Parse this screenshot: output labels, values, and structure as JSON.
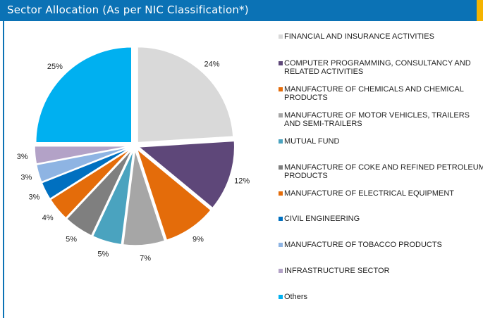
{
  "header": {
    "title": "Sector Allocation (As per NIC Classification*)",
    "bar_color": "#0b72b5",
    "accent_color": "#f5b400"
  },
  "chart_data": {
    "type": "pie",
    "title": "",
    "labels": [
      "FINANCIAL AND INSURANCE ACTIVITIES",
      "COMPUTER PROGRAMMING, CONSULTANCY AND RELATED ACTIVITIES",
      "MANUFACTURE OF CHEMICALS AND CHEMICAL PRODUCTS",
      "MANUFACTURE OF MOTOR VEHICLES, TRAILERS AND SEMI-TRAILERS",
      "MUTUAL FUND",
      "MANUFACTURE OF COKE AND REFINED PETROLEUM PRODUCTS",
      "MANUFACTURE OF ELECTRICAL EQUIPMENT",
      "CIVIL ENGINEERING",
      "MANUFACTURE OF TOBACCO PRODUCTS",
      "INFRASTRUCTURE SECTOR",
      "Others"
    ],
    "values": [
      24,
      12,
      9,
      7,
      5,
      5,
      4,
      3,
      3,
      3,
      25
    ],
    "value_labels": [
      "24%",
      "12%",
      "9%",
      "7%",
      "5%",
      "5%",
      "4%",
      "3%",
      "3%",
      "3%",
      "25%"
    ],
    "colors": [
      "#d9d9d9",
      "#5e4779",
      "#e46c0a",
      "#a6a6a6",
      "#4aa3bf",
      "#7f7f7f",
      "#e46c0a",
      "#0070c0",
      "#8eb4e3",
      "#b3a2c7",
      "#00b0f0"
    ],
    "legend_position": "right",
    "exploded": true
  }
}
